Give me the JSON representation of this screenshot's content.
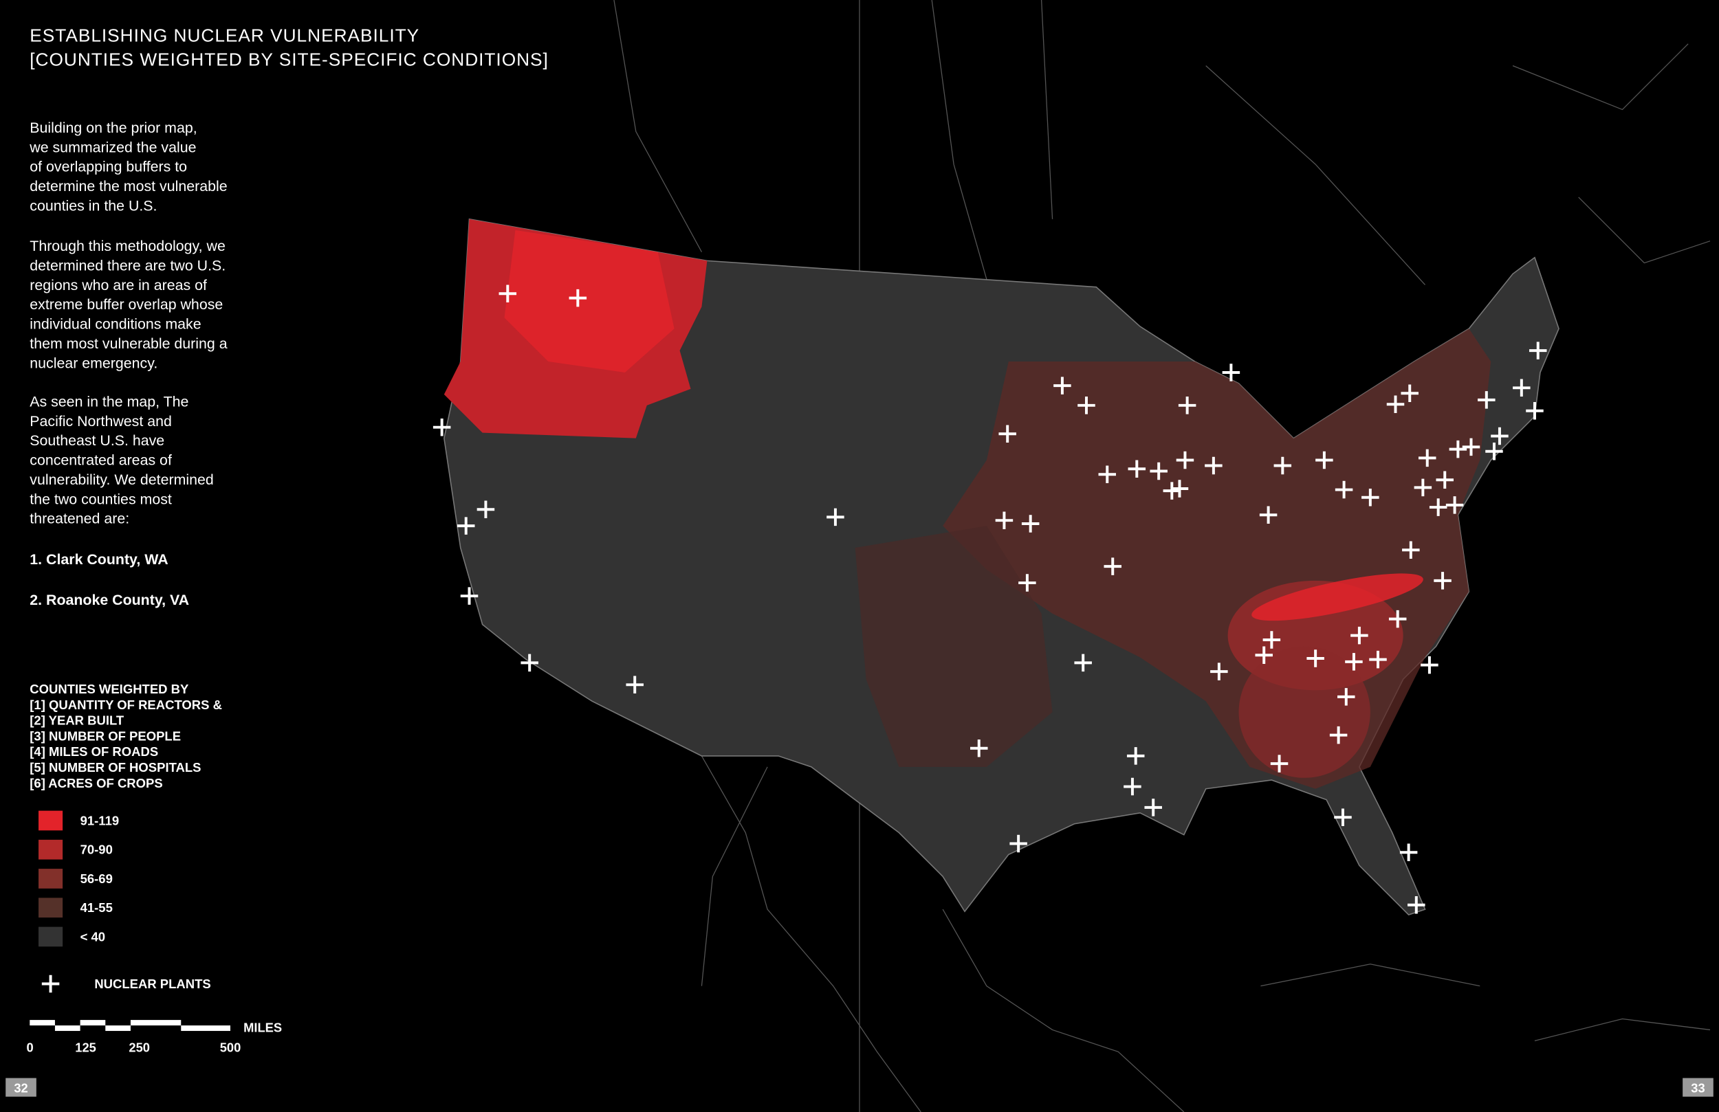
{
  "header": {
    "title_lines": [
      "ESTABLISHING NUCLEAR VULNERABILITY",
      "[COUNTIES WEIGHTED BY SITE-SPECIFIC CONDITIONS]"
    ]
  },
  "intro": {
    "paragraphs": [
      [
        "Building on the prior map,",
        "we summarized the value",
        "of overlapping buffers to",
        "determine the most vulnerable",
        "counties in the U.S."
      ],
      [
        "Through this methodology, we",
        "determined there are two U.S.",
        "regions who are in areas of",
        "extreme buffer overlap whose",
        "individual conditions make",
        "them most vulnerable during a",
        "nuclear emergency."
      ],
      [
        "As seen in the map, The",
        "Pacific Northwest and",
        "Southeast U.S. have",
        "concentrated areas of",
        "vulnerability. We determined",
        "the two counties most",
        "threatened are:"
      ]
    ],
    "list": [
      "1. Clark County, WA",
      "2. Roanoke County, VA"
    ]
  },
  "legend": {
    "heading_lines": [
      "COUNTIES WEIGHTED BY",
      "[1] QUANTITY OF REACTORS &",
      "[2] YEAR BUILT",
      "[3] NUMBER OF PEOPLE",
      "[4] MILES OF ROADS",
      "[5] NUMBER OF HOSPITALS",
      "[6] ACRES OF CROPS"
    ],
    "items": [
      {
        "label": "91-119",
        "color": "#e3232a"
      },
      {
        "label": "70-90",
        "color": "#b32a2a"
      },
      {
        "label": "56-69",
        "color": "#82302a"
      },
      {
        "label": "41-55",
        "color": "#553129"
      },
      {
        "label": "< 40",
        "color": "#333333"
      }
    ],
    "plants_label": "NUCLEAR PLANTS"
  },
  "scale": {
    "unit": "MILES",
    "labels": [
      "0",
      "125",
      "250",
      "500"
    ]
  },
  "pages": {
    "left": "32",
    "right": "33"
  }
}
